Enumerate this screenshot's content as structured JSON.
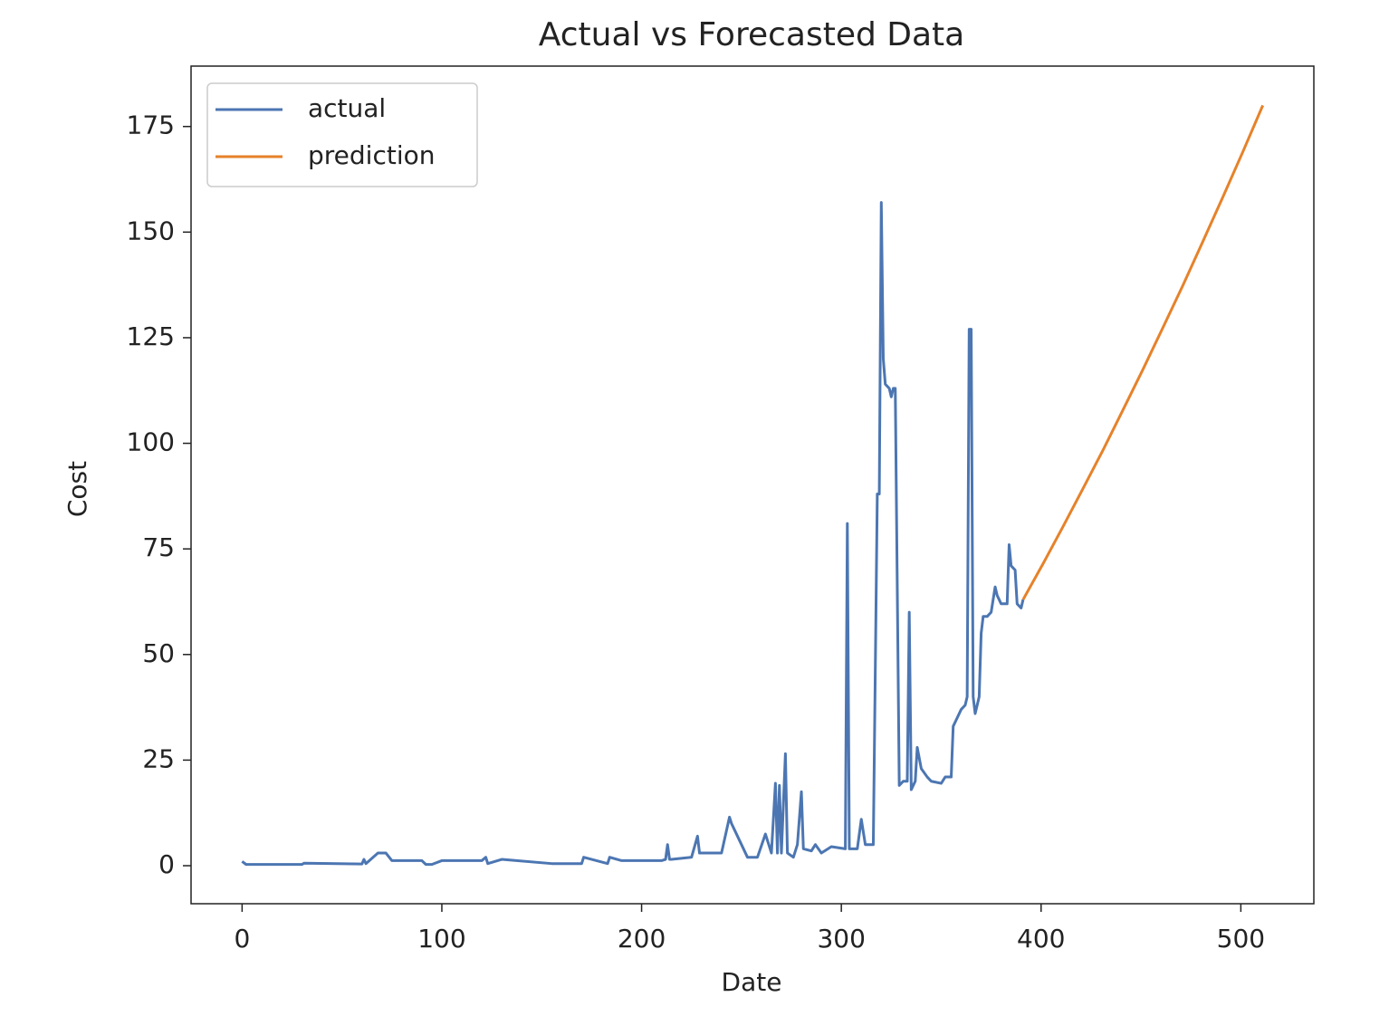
{
  "chart_data": {
    "type": "line",
    "title": "Actual vs Forecasted Data",
    "x_label": "Date",
    "y_label": "Cost",
    "xlim": [
      -25.55,
      536.55
    ],
    "ylim": [
      -9,
      189.3
    ],
    "xticks": [
      0,
      100,
      200,
      300,
      400,
      500
    ],
    "yticks": [
      0,
      25,
      50,
      75,
      100,
      125,
      150,
      175
    ],
    "legend": "upper-left",
    "grid": false,
    "series": [
      {
        "name": "actual",
        "color": "#4c76b2",
        "x": [
          0,
          2,
          30,
          31,
          60,
          61,
          62,
          68,
          72,
          75,
          90,
          92,
          95,
          100,
          120,
          122,
          123,
          130,
          155,
          170,
          171,
          183,
          184,
          190,
          210,
          212,
          213,
          214,
          215,
          225,
          228,
          229,
          230,
          240,
          244,
          245,
          247,
          250,
          253,
          258,
          262,
          265,
          267,
          268,
          269,
          270,
          272,
          273,
          276,
          278,
          280,
          281,
          285,
          287,
          290,
          295,
          302,
          303,
          304,
          308,
          310,
          312,
          316,
          318,
          319,
          320,
          321,
          322,
          324,
          325,
          326,
          327,
          329,
          331,
          333,
          334,
          335,
          337,
          338,
          340,
          343,
          345,
          350,
          352,
          355,
          356,
          358,
          360,
          362,
          363,
          364,
          365,
          366,
          367,
          368,
          369,
          370,
          371,
          373,
          375,
          377,
          378,
          380,
          383,
          384,
          385,
          387,
          388,
          390,
          391
        ],
        "values": [
          1,
          0.3,
          0.3,
          0.6,
          0.4,
          1.5,
          0.5,
          3,
          3,
          1.2,
          1.2,
          0.3,
          0.3,
          1.2,
          1.2,
          2,
          0.5,
          1.5,
          0.5,
          0.5,
          2,
          0.5,
          2,
          1.2,
          1.2,
          1.5,
          5,
          1.5,
          1.5,
          2,
          7,
          3,
          3,
          3,
          11.5,
          10,
          8,
          5,
          2,
          2,
          7.5,
          3,
          19.5,
          3,
          19,
          3,
          26.5,
          3,
          2,
          5,
          17.5,
          4,
          3.5,
          5,
          3,
          4.5,
          4,
          81,
          4,
          4,
          11,
          5,
          5,
          88,
          88,
          157,
          120,
          114,
          113,
          111,
          113,
          113,
          19,
          20,
          20,
          60,
          18,
          20,
          28,
          23,
          21,
          20,
          19.5,
          21,
          21,
          33,
          35,
          37,
          38,
          40,
          127,
          127,
          40,
          36,
          38,
          40,
          55,
          59,
          59,
          60,
          66,
          64,
          62,
          62,
          76,
          71,
          70,
          62,
          61,
          63
        ]
      },
      {
        "name": "prediction",
        "color": "#e6822a",
        "x": [
          391,
          401,
          411,
          421,
          431,
          441,
          451,
          461,
          471,
          481,
          491,
          501,
          511
        ],
        "values": [
          63,
          71.5,
          80.3,
          89.3,
          98.4,
          107.9,
          117.5,
          127.4,
          137.4,
          147.8,
          158.3,
          169,
          180
        ]
      }
    ]
  }
}
